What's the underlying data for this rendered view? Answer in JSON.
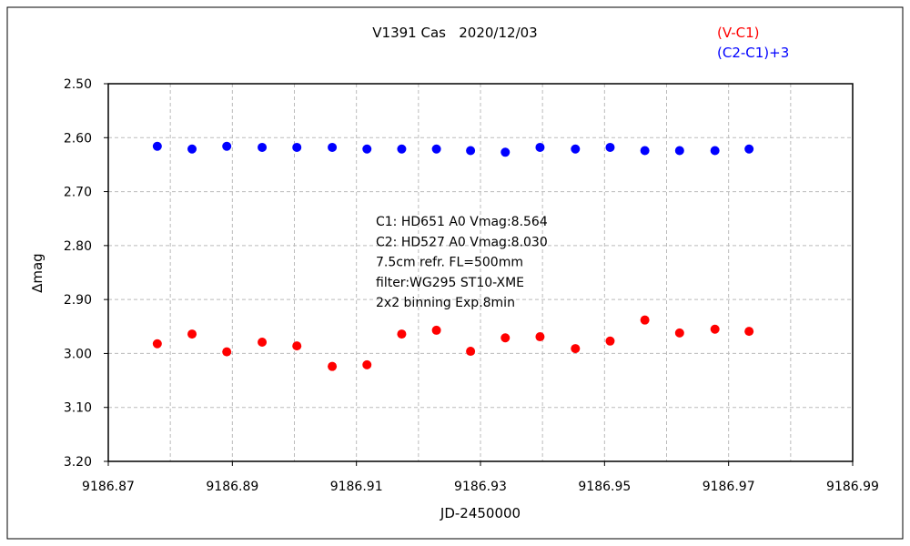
{
  "chart_data": {
    "type": "scatter",
    "title": "V1391 Cas   2020/12/03",
    "xlabel": "JD-2450000",
    "ylabel": "∆mag",
    "xlim": [
      9186.87,
      9186.99
    ],
    "ylim": [
      2.5,
      3.2
    ],
    "y_inverted": true,
    "grid": true,
    "xticks": [
      "9186.87",
      "9186.89",
      "9186.91",
      "9186.93",
      "9186.95",
      "9186.97",
      "9186.99"
    ],
    "xtick_values": [
      9186.87,
      9186.88,
      9186.89,
      9186.9,
      9186.91,
      9186.92,
      9186.93,
      9186.94,
      9186.95,
      9186.96,
      9186.97,
      9186.98,
      9186.99
    ],
    "yticks": [
      "2.50",
      "2.60",
      "2.70",
      "2.80",
      "2.90",
      "3.00",
      "3.10",
      "3.20"
    ],
    "ytick_values": [
      2.5,
      2.6,
      2.7,
      2.8,
      2.9,
      3.0,
      3.1,
      3.2
    ],
    "legend_position": "top-right",
    "x": [
      9186.8779,
      9186.8835,
      9186.8891,
      9186.8948,
      9186.9004,
      9186.9061,
      9186.9117,
      9186.9173,
      9186.9229,
      9186.9284,
      9186.934,
      9186.9396,
      9186.9453,
      9186.9509,
      9186.9565,
      9186.9621,
      9186.9678,
      9186.9733
    ],
    "series": [
      {
        "name": "(V-C1)",
        "color": "#ff0000",
        "values": [
          2.982,
          2.964,
          2.997,
          2.979,
          2.986,
          3.024,
          3.021,
          2.964,
          2.957,
          2.996,
          2.971,
          2.969,
          2.991,
          2.977,
          2.938,
          2.962,
          2.955,
          2.959
        ]
      },
      {
        "name": "(C2-C1)+3",
        "color": "#0000ff",
        "values": [
          2.616,
          2.621,
          2.616,
          2.618,
          2.618,
          2.618,
          2.621,
          2.621,
          2.621,
          2.624,
          2.627,
          2.618,
          2.621,
          2.618,
          2.624,
          2.624,
          2.624,
          2.621
        ]
      }
    ],
    "annotations": [
      "C1: HD651  A0  Vmag:8.564",
      "C2: HD527  A0   Vmag:8.030",
      "7.5cm refr. FL=500mm",
      "filter:WG295  ST10-XME",
      "2x2 binning  Exp.8min"
    ]
  }
}
